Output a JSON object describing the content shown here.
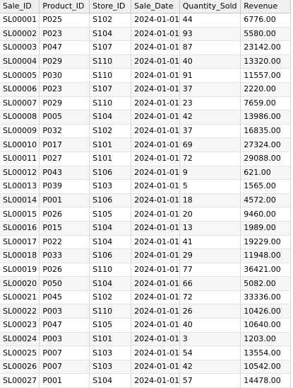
{
  "columns": [
    "Sale_ID",
    "Product_ID",
    "Store_ID",
    "Sale_Date",
    "Quantity_Sold",
    "Revenue"
  ],
  "rows": [
    [
      "SL00001",
      "P025",
      "S102",
      "2024-01-01",
      "44",
      "6776.00"
    ],
    [
      "SL00002",
      "P023",
      "S104",
      "2024-01-01",
      "93",
      "5580.00"
    ],
    [
      "SL00003",
      "P047",
      "S107",
      "2024-01-01",
      "87",
      "23142.00"
    ],
    [
      "SL00004",
      "P029",
      "S110",
      "2024-01-01",
      "40",
      "13320.00"
    ],
    [
      "SL00005",
      "P030",
      "S110",
      "2024-01-01",
      "91",
      "11557.00"
    ],
    [
      "SL00006",
      "P023",
      "S107",
      "2024-01-01",
      "37",
      "2220.00"
    ],
    [
      "SL00007",
      "P029",
      "S110",
      "2024-01-01",
      "23",
      "7659.00"
    ],
    [
      "SL00008",
      "P005",
      "S104",
      "2024-01-01",
      "42",
      "13986.00"
    ],
    [
      "SL00009",
      "P032",
      "S102",
      "2024-01-01",
      "37",
      "16835.00"
    ],
    [
      "SL00010",
      "P017",
      "S101",
      "2024-01-01",
      "69",
      "27324.00"
    ],
    [
      "SL00011",
      "P027",
      "S101",
      "2024-01-01",
      "72",
      "29088.00"
    ],
    [
      "SL00012",
      "P043",
      "S106",
      "2024-01-01",
      "9",
      "621.00"
    ],
    [
      "SL00013",
      "P039",
      "S103",
      "2024-01-01",
      "5",
      "1565.00"
    ],
    [
      "SL00014",
      "P001",
      "S106",
      "2024-01-01",
      "18",
      "4572.00"
    ],
    [
      "SL00015",
      "P026",
      "S105",
      "2024-01-01",
      "20",
      "9460.00"
    ],
    [
      "SL00016",
      "P015",
      "S104",
      "2024-01-01",
      "13",
      "1989.00"
    ],
    [
      "SL00017",
      "P022",
      "S104",
      "2024-01-01",
      "41",
      "19229.00"
    ],
    [
      "SL00018",
      "P033",
      "S106",
      "2024-01-01",
      "29",
      "11948.00"
    ],
    [
      "SL00019",
      "P026",
      "S110",
      "2024-01-01",
      "77",
      "36421.00"
    ],
    [
      "SL00020",
      "P050",
      "S104",
      "2024-01-01",
      "66",
      "5082.00"
    ],
    [
      "SL00021",
      "P045",
      "S102",
      "2024-01-01",
      "72",
      "33336.00"
    ],
    [
      "SL00022",
      "P003",
      "S110",
      "2024-01-01",
      "26",
      "10426.00"
    ],
    [
      "SL00023",
      "P047",
      "S105",
      "2024-01-01",
      "40",
      "10640.00"
    ],
    [
      "SL00024",
      "P003",
      "S101",
      "2024-01-01",
      "3",
      "1203.00"
    ],
    [
      "SL00025",
      "P007",
      "S103",
      "2024-01-01",
      "54",
      "13554.00"
    ],
    [
      "SL00026",
      "P007",
      "S103",
      "2024-01-01",
      "42",
      "10542.00"
    ],
    [
      "SL00027",
      "P001",
      "S104",
      "2024-01-01",
      "57",
      "14478.00"
    ]
  ]
}
